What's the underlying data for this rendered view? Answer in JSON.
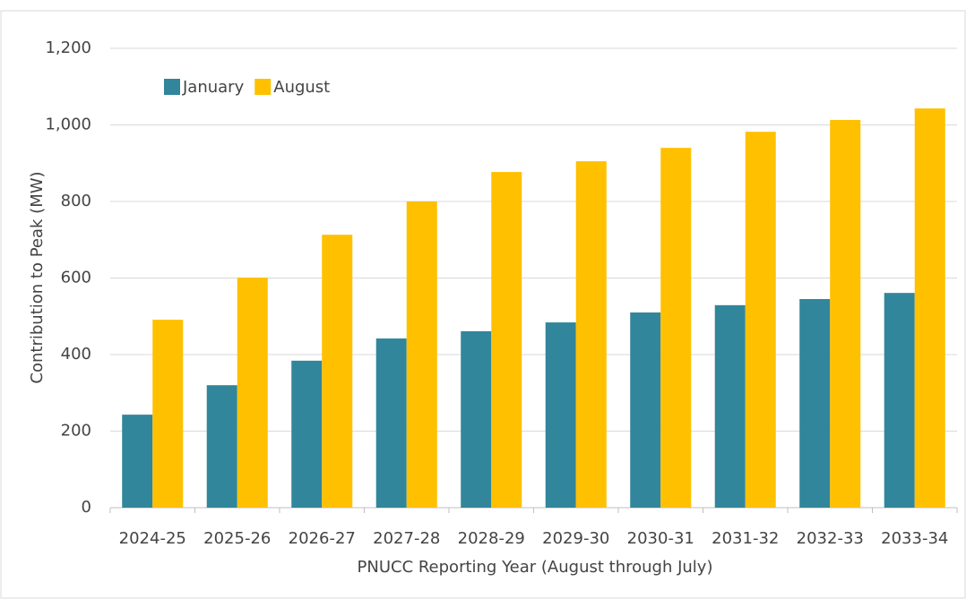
{
  "chart_data": {
    "type": "bar",
    "y_label": "Contribution to Peak (MW)",
    "x_label": "PNUCC Reporting Year (August through July)",
    "categories": [
      "2024-25",
      "2025-26",
      "2026-27",
      "2027-28",
      "2028-29",
      "2029-30",
      "2030-31",
      "2031-32",
      "2032-33",
      "2033-34"
    ],
    "series": [
      {
        "name": "January",
        "color": "#31869b",
        "values": [
          243,
          320,
          384,
          442,
          461,
          484,
          510,
          529,
          545,
          561
        ]
      },
      {
        "name": "August",
        "color": "#ffc000",
        "values": [
          491,
          601,
          713,
          800,
          877,
          905,
          940,
          982,
          1013,
          1043
        ]
      }
    ],
    "ylim": [
      0,
      1200
    ],
    "yticks": [
      0,
      200,
      400,
      600,
      800,
      {
        "value": 1000,
        "label": "1,000"
      },
      {
        "value": 1200,
        "label": "1,200"
      }
    ],
    "grid": true,
    "legend": "top-left"
  }
}
